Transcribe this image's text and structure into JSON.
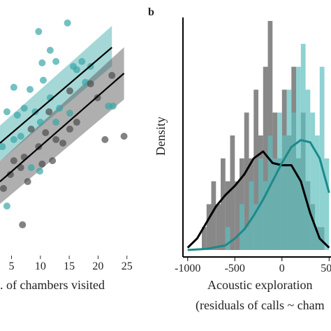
{
  "chart_data": [
    {
      "type": "scatter",
      "xlabel": ". of chambers visited",
      "xlim": [
        3,
        26
      ],
      "ylim": [
        0,
        100
      ],
      "xticks": [
        5,
        10,
        15,
        20,
        25
      ],
      "series": [
        {
          "color": "#3aa6a6",
          "x": [
            14.7,
            9.7,
            11.7,
            10.3,
            12.7,
            15.7,
            16.3,
            17.2,
            17.8,
            8.2,
            10.5,
            5.4,
            7.2,
            9.1,
            11.7,
            13.3,
            15.1,
            10.0,
            12.7,
            18.7,
            21.8,
            22.6,
            4.2,
            6.0,
            3.4,
            5.4,
            8.4,
            9.9,
            4.2,
            6.6
          ],
          "values": [
            96.2,
            92.6,
            84.7,
            79.4,
            80.0,
            77.9,
            76.5,
            80.0,
            71.2,
            68.2,
            72.1,
            69.1,
            60.3,
            58.8,
            64.7,
            60.3,
            58.2,
            54.4,
            54.4,
            77.9,
            61.2,
            61.2,
            58.8,
            57.4,
            44.1,
            47.1,
            35.3,
            33.8,
            19.1,
            48.5
          ]
        },
        {
          "color": "#4d4d4d",
          "x": [
            22.4,
            18.7,
            19.9,
            15.1,
            11.5,
            8.4,
            10.9,
            9.7,
            12.7,
            12.1,
            13.9,
            6.6,
            5.4,
            7.2,
            7.8,
            3.6,
            4.8,
            10.3,
            21.2,
            24.5,
            6.9,
            15.1,
            16.3
          ],
          "values": [
            74.1,
            70.6,
            64.7,
            67.6,
            58.8,
            51.5,
            50.0,
            44.1,
            47.1,
            38.2,
            45.6,
            35.3,
            38.2,
            39.7,
            29.4,
            26.5,
            32.4,
            36.8,
            47.1,
            48.5,
            11.2,
            51.5,
            54.4
          ]
        }
      ],
      "fits": [
        {
          "color": "#3aa6a6",
          "x": [
            3,
            22.4
          ],
          "values": [
            45.6,
            85.9
          ],
          "lower": [
            38,
            78
          ],
          "upper": [
            53,
            95
          ]
        },
        {
          "color": "#4d4d4d",
          "x": [
            3,
            24.5
          ],
          "values": [
            29.4,
            75
          ],
          "lower": [
            20,
            64
          ],
          "upper": [
            38,
            86
          ]
        }
      ]
    },
    {
      "type": "histogram",
      "panel_label": "b",
      "ylabel": "Density",
      "xlabel": [
        "Acoustic exploration",
        "(residuals of calls ~ cham"
      ],
      "xlim": [
        -1050,
        520
      ],
      "ylim": [
        0,
        10
      ],
      "xticks": [
        -1000,
        -500,
        0,
        500
      ],
      "bins": [
        -1000,
        -950,
        -900,
        -850,
        -800,
        -750,
        -700,
        -650,
        -600,
        -550,
        -500,
        -450,
        -400,
        -350,
        -300,
        -250,
        -200,
        -150,
        -100,
        -50,
        0,
        50,
        100,
        150,
        200,
        250,
        300,
        350,
        400,
        450,
        500
      ],
      "series": [
        {
          "color": "#555555",
          "values": [
            0,
            0,
            0,
            1,
            2,
            3,
            2,
            4,
            3,
            5,
            3,
            4,
            6,
            4,
            7,
            5,
            8,
            10,
            6,
            4,
            7,
            5,
            8,
            4,
            6,
            3,
            2,
            1,
            1,
            0
          ]
        },
        {
          "color": "#5fbfbf",
          "values": [
            0,
            0,
            0,
            0,
            0,
            0,
            0,
            0,
            1,
            0,
            0,
            2,
            1,
            3,
            2,
            4,
            3,
            5,
            4,
            6,
            5,
            7,
            6,
            8,
            9,
            7,
            6,
            5,
            8,
            4
          ]
        }
      ],
      "density": [
        {
          "color": "#000000",
          "x": [
            -1000,
            -900,
            -800,
            -700,
            -600,
            -500,
            -400,
            -300,
            -200,
            -100,
            0,
            100,
            200,
            300,
            400,
            500
          ],
          "values": [
            0.1,
            0.5,
            1.2,
            1.9,
            2.4,
            2.8,
            3.3,
            4.0,
            4.3,
            3.8,
            3.7,
            3.7,
            3.0,
            1.6,
            0.5,
            0.1
          ]
        },
        {
          "color": "#1a8a8a",
          "x": [
            -1000,
            -800,
            -600,
            -500,
            -400,
            -300,
            -200,
            -100,
            0,
            100,
            200,
            300,
            400,
            500
          ],
          "values": [
            0,
            0.05,
            0.2,
            0.5,
            0.9,
            1.5,
            2.2,
            3.0,
            3.8,
            4.5,
            4.8,
            4.7,
            4.0,
            2.5
          ]
        }
      ]
    }
  ]
}
